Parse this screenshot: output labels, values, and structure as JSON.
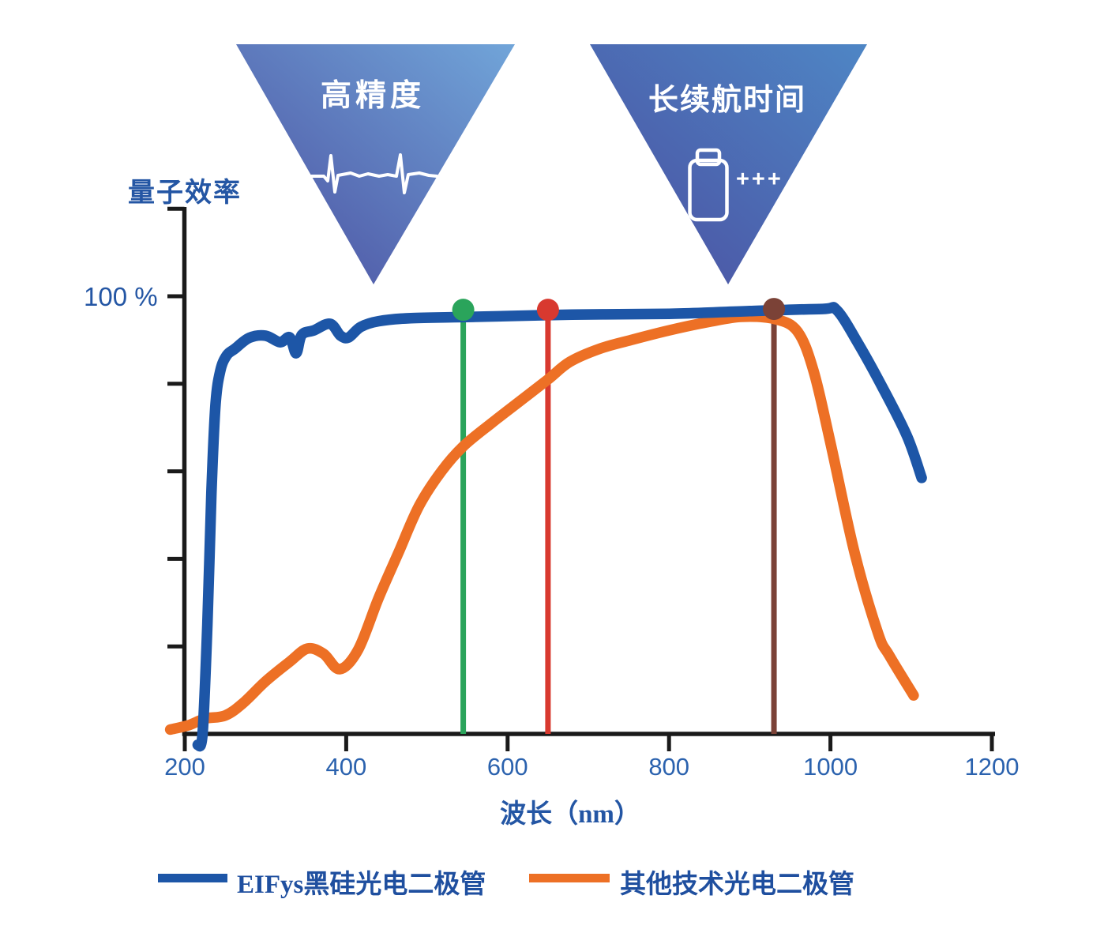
{
  "callouts": [
    {
      "label": "高精度",
      "icon": "ecg-waveform-icon"
    },
    {
      "label": "长续航时间",
      "icon": "battery-icon",
      "plus_text": "+++"
    }
  ],
  "chart_data": {
    "type": "line",
    "title": "",
    "xlabel": "波长（nm）",
    "ylabel": "量子效率",
    "x_ticks": [
      200,
      400,
      600,
      800,
      1000,
      1200
    ],
    "y_tick_labels": [
      "100 %"
    ],
    "y_axis": {
      "min_pct": 0,
      "max_pct": 120,
      "tick_step_pct": 20,
      "labeled_pct": 100
    },
    "xlim": [
      200,
      1200
    ],
    "grid": false,
    "legend_position": "bottom",
    "series": [
      {
        "name": "EIFys黑硅光电二极管",
        "color": "#1D56A7",
        "points": [
          [
            216,
            -2.5
          ],
          [
            222,
            0
          ],
          [
            228,
            25
          ],
          [
            233,
            55
          ],
          [
            238,
            75
          ],
          [
            244,
            83
          ],
          [
            252,
            86.5
          ],
          [
            262,
            88
          ],
          [
            280,
            90.5
          ],
          [
            300,
            91
          ],
          [
            318,
            89.5
          ],
          [
            330,
            90.6
          ],
          [
            338,
            87
          ],
          [
            345,
            91.2
          ],
          [
            360,
            92.2
          ],
          [
            380,
            93.7
          ],
          [
            393,
            91
          ],
          [
            403,
            90.6
          ],
          [
            418,
            93
          ],
          [
            440,
            94.3
          ],
          [
            480,
            95
          ],
          [
            560,
            95.3
          ],
          [
            680,
            95.8
          ],
          [
            800,
            96
          ],
          [
            900,
            96.6
          ],
          [
            990,
            97.1
          ],
          [
            1008,
            96.8
          ],
          [
            1035,
            89
          ],
          [
            1065,
            79
          ],
          [
            1095,
            68
          ],
          [
            1113,
            58.5
          ]
        ]
      },
      {
        "name": "其他技术光电二极管",
        "color": "#ED7025",
        "points": [
          [
            182,
            1
          ],
          [
            205,
            2
          ],
          [
            225,
            3.5
          ],
          [
            250,
            4.2
          ],
          [
            272,
            7
          ],
          [
            300,
            12
          ],
          [
            330,
            16.5
          ],
          [
            352,
            19.5
          ],
          [
            372,
            18.3
          ],
          [
            392,
            14.8
          ],
          [
            415,
            19.3
          ],
          [
            440,
            31
          ],
          [
            465,
            41.5
          ],
          [
            490,
            52
          ],
          [
            518,
            60
          ],
          [
            545,
            65.7
          ],
          [
            580,
            71
          ],
          [
            615,
            76
          ],
          [
            650,
            81
          ],
          [
            677,
            85
          ],
          [
            714,
            88
          ],
          [
            753,
            90
          ],
          [
            800,
            92.2
          ],
          [
            851,
            94.2
          ],
          [
            890,
            95.3
          ],
          [
            931,
            94.8
          ],
          [
            959,
            92
          ],
          [
            979,
            83
          ],
          [
            1000,
            66.5
          ],
          [
            1030,
            41.3
          ],
          [
            1059,
            23
          ],
          [
            1073,
            17.9
          ],
          [
            1103,
            8.8
          ]
        ]
      }
    ],
    "markers": [
      {
        "nm": 545,
        "color": "#2AA45B",
        "dot_pct": 96.9
      },
      {
        "nm": 650,
        "color": "#D8392F",
        "dot_pct": 96.9
      },
      {
        "nm": 930,
        "color": "#7B4237",
        "dot_pct": 97.1
      }
    ]
  },
  "legend": [
    {
      "label": "EIFys黑硅光电二极管",
      "color": "#1D56A7"
    },
    {
      "label": "其他技术光电二极管",
      "color": "#ED7025"
    }
  ],
  "colors": {
    "axis": "#1A1A1A",
    "axis_text": "#2456A4",
    "tick_text": "#2B62AE",
    "legend_text": "#1F4F9F"
  }
}
